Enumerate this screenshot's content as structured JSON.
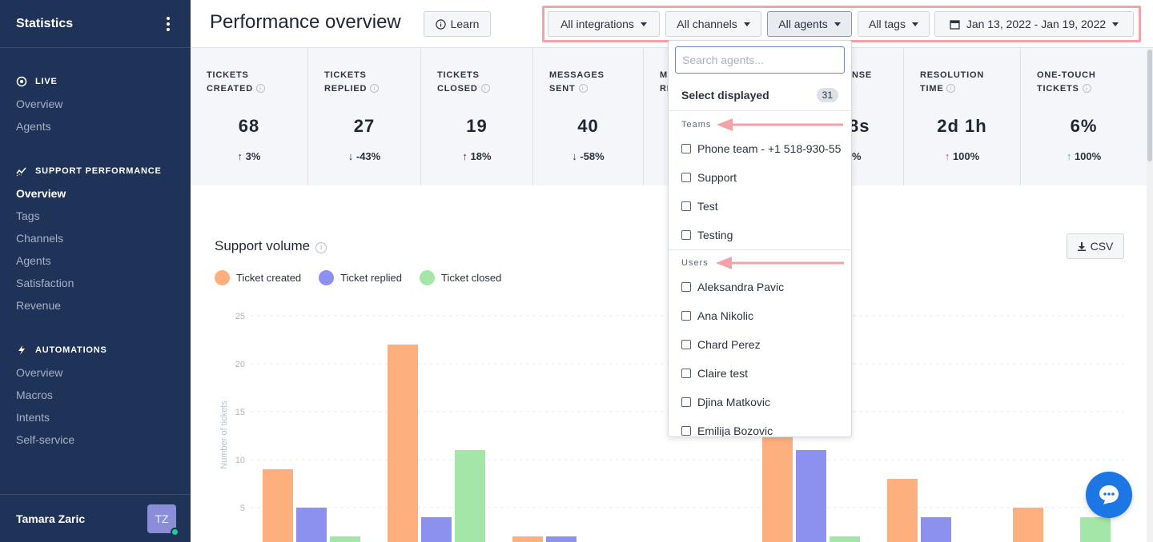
{
  "sidebar": {
    "title": "Statistics",
    "sections": [
      {
        "label": "LIVE",
        "icon": "target-icon",
        "items": [
          {
            "label": "Overview"
          },
          {
            "label": "Agents"
          }
        ]
      },
      {
        "label": "SUPPORT PERFORMANCE",
        "icon": "trend-icon",
        "items": [
          {
            "label": "Overview",
            "active": true
          },
          {
            "label": "Tags"
          },
          {
            "label": "Channels"
          },
          {
            "label": "Agents"
          },
          {
            "label": "Satisfaction"
          },
          {
            "label": "Revenue"
          }
        ]
      },
      {
        "label": "AUTOMATIONS",
        "icon": "bolt-icon",
        "items": [
          {
            "label": "Overview"
          },
          {
            "label": "Macros"
          },
          {
            "label": "Intents"
          },
          {
            "label": "Self-service"
          }
        ]
      }
    ],
    "user": {
      "name": "Tamara Zaric",
      "initials": "TZ"
    }
  },
  "header": {
    "title": "Performance overview",
    "learn_label": "Learn",
    "filters": {
      "integrations": "All integrations",
      "channels": "All channels",
      "agents": "All agents",
      "tags": "All tags",
      "date_range": "Jan 13, 2022 - Jan 19, 2022"
    }
  },
  "stats": [
    {
      "label_line1": "TICKETS",
      "label_line2": "CREATED",
      "value": "68",
      "change": "3%",
      "direction": "up",
      "color": "neutral"
    },
    {
      "label_line1": "TICKETS",
      "label_line2": "REPLIED",
      "value": "27",
      "change": "-43%",
      "direction": "down",
      "color": "neutral"
    },
    {
      "label_line1": "TICKETS",
      "label_line2": "CLOSED",
      "value": "19",
      "change": "18%",
      "direction": "up",
      "color": "neutral"
    },
    {
      "label_line1": "MESSAGES",
      "label_line2": "SENT",
      "value": "40",
      "change": "-58%",
      "direction": "down",
      "color": "neutral"
    },
    {
      "label_line1": "M",
      "label_line2": "RE",
      "value": "",
      "change": "",
      "direction": "",
      "color": "neutral"
    },
    {
      "label_line1": "NSE",
      "label_line2": "",
      "value": "8s",
      "change": "%",
      "direction": "",
      "color": "neutral"
    },
    {
      "label_line1": "RESOLUTION",
      "label_line2": "TIME",
      "value": "2d 1h",
      "change": "100%",
      "direction": "up",
      "color": "red"
    },
    {
      "label_line1": "ONE-TOUCH",
      "label_line2": "TICKETS",
      "value": "6%",
      "change": "100%",
      "direction": "up",
      "color": "green"
    }
  ],
  "chart_panel": {
    "title": "Support volume",
    "csv_label": "CSV",
    "legend": [
      {
        "name": "Ticket created",
        "color": "#fdb07e"
      },
      {
        "name": "Ticket replied",
        "color": "#8c90ee"
      },
      {
        "name": "Ticket closed",
        "color": "#a4e5a8"
      }
    ]
  },
  "chart_data": {
    "type": "bar",
    "ylabel": "Number of tickets",
    "yticks": [
      5,
      10,
      15,
      20,
      25
    ],
    "ylim": [
      0,
      25
    ],
    "grid": true,
    "groups_visible": 7,
    "series": [
      {
        "name": "Ticket created",
        "color": "#fdb07e",
        "values": [
          9,
          22,
          2,
          null,
          null,
          13,
          8,
          5
        ]
      },
      {
        "name": "Ticket replied",
        "color": "#8c90ee",
        "values": [
          5,
          4,
          2,
          null,
          null,
          11,
          4,
          null
        ]
      },
      {
        "name": "Ticket closed",
        "color": "#a4e5a8",
        "values": [
          2,
          11,
          null,
          null,
          null,
          2,
          null,
          4
        ]
      }
    ]
  },
  "dropdown": {
    "search_placeholder": "Search agents...",
    "select_displayed_label": "Select displayed",
    "select_displayed_count": "31",
    "teams_header": "Teams",
    "teams": [
      "Phone team - +1 518-930-55",
      "Support",
      "Test",
      "Testing"
    ],
    "users_header": "Users",
    "users": [
      "Aleksandra Pavic",
      "Ana Nikolic",
      "Chard Perez",
      "Claire test",
      "Djina Matkovic",
      "Emilija Bozovic"
    ]
  },
  "colors": {
    "sidebar_bg": "#1f3358",
    "annotation": "#f3a3a8",
    "accent_blue": "#1c76e3"
  }
}
